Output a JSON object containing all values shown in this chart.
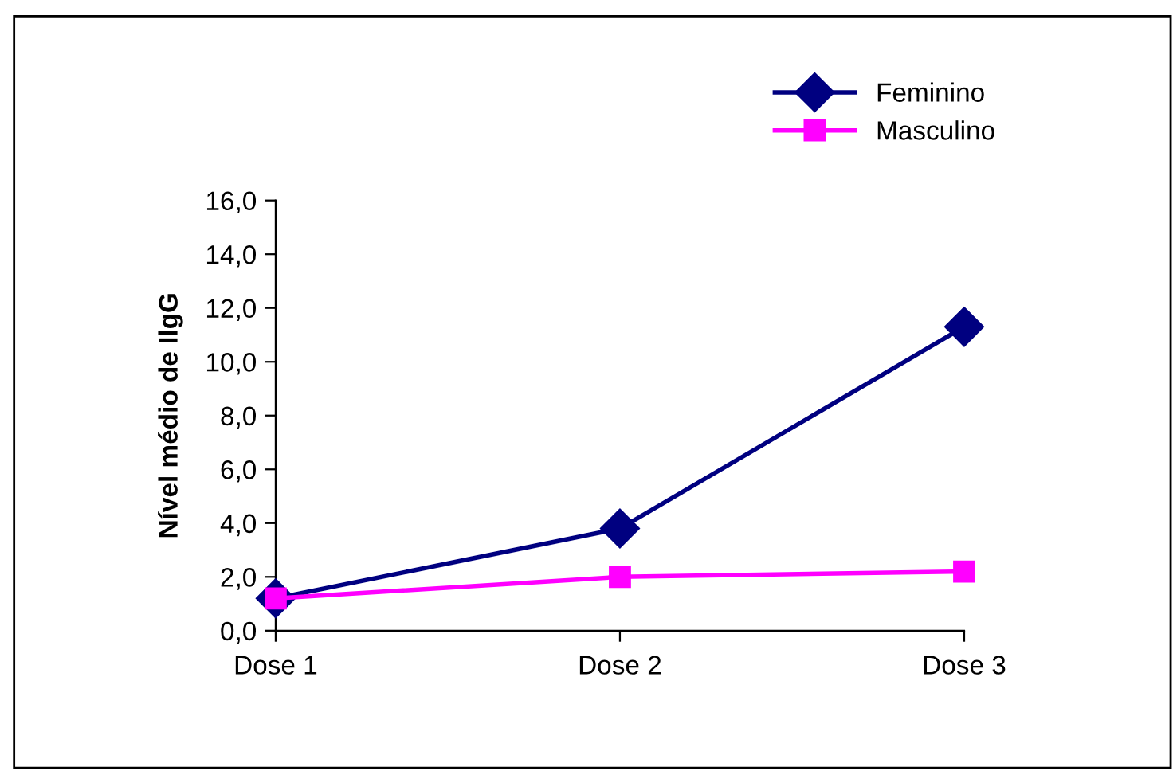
{
  "chart_data": {
    "type": "line",
    "ylabel": "Nível médio de IlgG",
    "categories": [
      "Dose 1",
      "Dose 2",
      "Dose 3"
    ],
    "series": [
      {
        "name": "Feminino",
        "color": "#000080",
        "marker": "diamond",
        "values": [
          1.2,
          3.8,
          11.3
        ]
      },
      {
        "name": "Masculino",
        "color": "#ff00ff",
        "marker": "square",
        "values": [
          1.2,
          2.0,
          2.2
        ]
      }
    ],
    "ylim": [
      0,
      16
    ],
    "yticks": [
      {
        "value": 0,
        "label": "0,0"
      },
      {
        "value": 2,
        "label": "2,0"
      },
      {
        "value": 4,
        "label": "4,0"
      },
      {
        "value": 6,
        "label": "6,0"
      },
      {
        "value": 8,
        "label": "8,0"
      },
      {
        "value": 10,
        "label": "10,0"
      },
      {
        "value": 12,
        "label": "12,0"
      },
      {
        "value": 14,
        "label": "14,0"
      },
      {
        "value": 16,
        "label": "16,0"
      }
    ],
    "grid": false,
    "legend": "top right",
    "line_style": "solid"
  }
}
